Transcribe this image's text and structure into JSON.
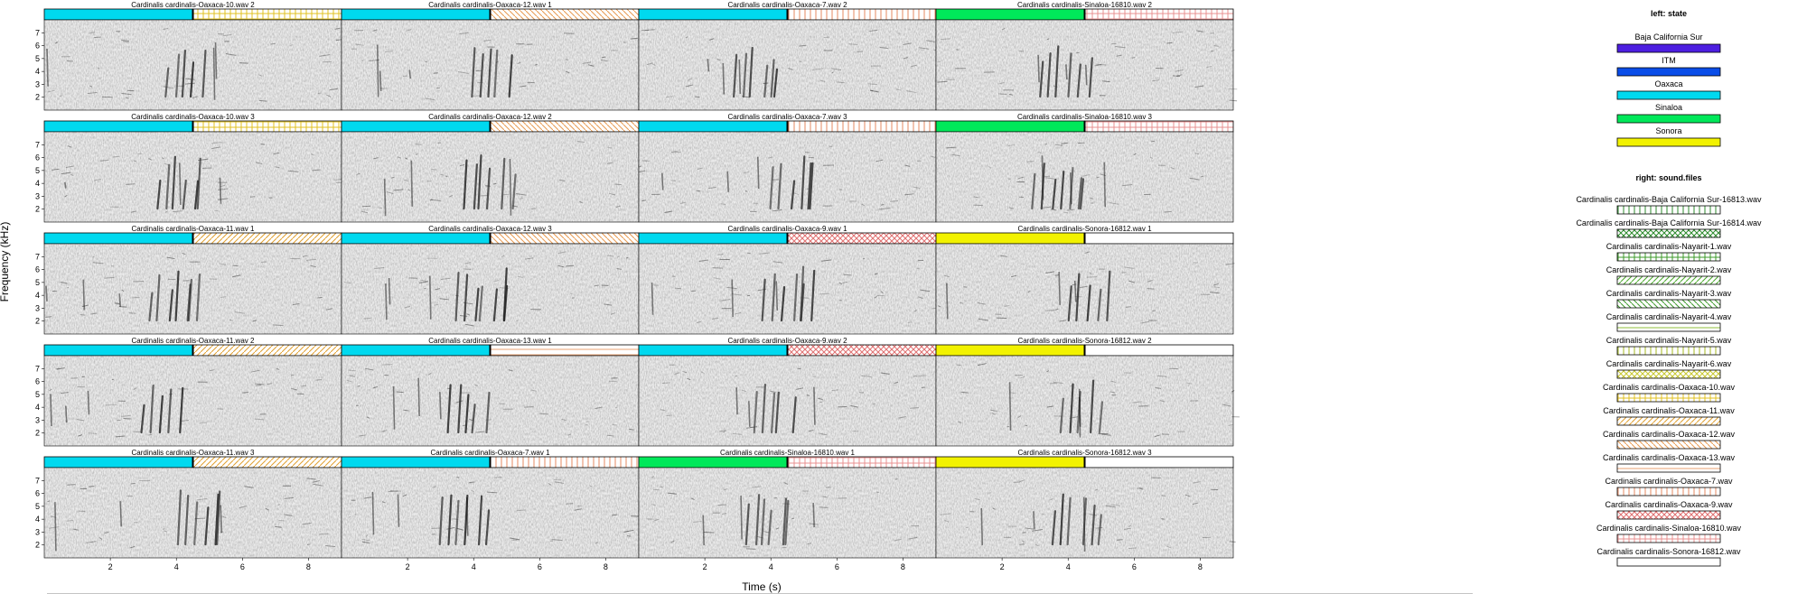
{
  "chart_data": {
    "type": "heatmap",
    "xlabel": "Time (s)",
    "ylabel": "Frequency (kHz)",
    "xlim": [
      0,
      9
    ],
    "ylim": [
      1,
      8
    ],
    "x_ticks": [
      2,
      4,
      6,
      8
    ],
    "y_ticks": [
      2,
      3,
      4,
      5,
      6,
      7
    ],
    "grid": false,
    "legend_placement": "right",
    "panels": [
      {
        "title": "Cardinalis cardinalis-Oaxaca-10.wav 2",
        "state": "Oaxaca",
        "sound_file": "Cardinalis cardinalis-Oaxaca-10.wav"
      },
      {
        "title": "Cardinalis cardinalis-Oaxaca-12.wav 1",
        "state": "Oaxaca",
        "sound_file": "Cardinalis cardinalis-Oaxaca-12.wav"
      },
      {
        "title": "Cardinalis cardinalis-Oaxaca-7.wav 2",
        "state": "Oaxaca",
        "sound_file": "Cardinalis cardinalis-Oaxaca-7.wav"
      },
      {
        "title": "Cardinalis cardinalis-Sinaloa-16810.wav 2",
        "state": "Sinaloa",
        "sound_file": "Cardinalis cardinalis-Sinaloa-16810.wav"
      },
      {
        "title": "Cardinalis cardinalis-Oaxaca-10.wav 3",
        "state": "Oaxaca",
        "sound_file": "Cardinalis cardinalis-Oaxaca-10.wav"
      },
      {
        "title": "Cardinalis cardinalis-Oaxaca-12.wav 2",
        "state": "Oaxaca",
        "sound_file": "Cardinalis cardinalis-Oaxaca-12.wav"
      },
      {
        "title": "Cardinalis cardinalis-Oaxaca-7.wav 3",
        "state": "Oaxaca",
        "sound_file": "Cardinalis cardinalis-Oaxaca-7.wav"
      },
      {
        "title": "Cardinalis cardinalis-Sinaloa-16810.wav 3",
        "state": "Sinaloa",
        "sound_file": "Cardinalis cardinalis-Sinaloa-16810.wav"
      },
      {
        "title": "Cardinalis cardinalis-Oaxaca-11.wav 1",
        "state": "Oaxaca",
        "sound_file": "Cardinalis cardinalis-Oaxaca-11.wav"
      },
      {
        "title": "Cardinalis cardinalis-Oaxaca-12.wav 3",
        "state": "Oaxaca",
        "sound_file": "Cardinalis cardinalis-Oaxaca-12.wav"
      },
      {
        "title": "Cardinalis cardinalis-Oaxaca-9.wav 1",
        "state": "Oaxaca",
        "sound_file": "Cardinalis cardinalis-Oaxaca-9.wav"
      },
      {
        "title": "Cardinalis cardinalis-Sonora-16812.wav 1",
        "state": "Sonora",
        "sound_file": "Cardinalis cardinalis-Sonora-16812.wav"
      },
      {
        "title": "Cardinalis cardinalis-Oaxaca-11.wav 2",
        "state": "Oaxaca",
        "sound_file": "Cardinalis cardinalis-Oaxaca-11.wav"
      },
      {
        "title": "Cardinalis cardinalis-Oaxaca-13.wav 1",
        "state": "Oaxaca",
        "sound_file": "Cardinalis cardinalis-Oaxaca-13.wav"
      },
      {
        "title": "Cardinalis cardinalis-Oaxaca-9.wav 2",
        "state": "Oaxaca",
        "sound_file": "Cardinalis cardinalis-Oaxaca-9.wav"
      },
      {
        "title": "Cardinalis cardinalis-Sonora-16812.wav 2",
        "state": "Sonora",
        "sound_file": "Cardinalis cardinalis-Sonora-16812.wav"
      },
      {
        "title": "Cardinalis cardinalis-Oaxaca-11.wav 3",
        "state": "Oaxaca",
        "sound_file": "Cardinalis cardinalis-Oaxaca-11.wav"
      },
      {
        "title": "Cardinalis cardinalis-Oaxaca-7.wav 1",
        "state": "Oaxaca",
        "sound_file": "Cardinalis cardinalis-Oaxaca-7.wav"
      },
      {
        "title": "Cardinalis cardinalis-Sinaloa-16810.wav 1",
        "state": "Sinaloa",
        "sound_file": "Cardinalis cardinalis-Sinaloa-16810.wav"
      },
      {
        "title": "Cardinalis cardinalis-Sonora-16812.wav 3",
        "state": "Sonora",
        "sound_file": "Cardinalis cardinalis-Sonora-16812.wav"
      }
    ],
    "legend_left": {
      "title": "left: state",
      "entries": [
        {
          "label": "Baja California Sur",
          "color": "#4d1fe0"
        },
        {
          "label": "ITM",
          "color": "#0a4de8"
        },
        {
          "label": "Oaxaca",
          "color": "#00d9ef"
        },
        {
          "label": "Sinaloa",
          "color": "#00e85a"
        },
        {
          "label": "Sonora",
          "color": "#f2f200"
        }
      ]
    },
    "legend_right": {
      "title": "right: sound.files",
      "entries": [
        {
          "label": "Cardinalis cardinalis-Baja California Sur-16813.wav",
          "color": "#2e8b2e",
          "pattern": "vlines"
        },
        {
          "label": "Cardinalis cardinalis-Baja California Sur-16814.wav",
          "color": "#2e8b2e",
          "pattern": "cross"
        },
        {
          "label": "Cardinalis cardinalis-Nayarit-1.wav",
          "color": "#3c9a2a",
          "pattern": "grid"
        },
        {
          "label": "Cardinalis cardinalis-Nayarit-2.wav",
          "color": "#4aa82a",
          "pattern": "diag"
        },
        {
          "label": "Cardinalis cardinalis-Nayarit-3.wav",
          "color": "#3c9a2a",
          "pattern": "diag2"
        },
        {
          "label": "Cardinalis cardinalis-Nayarit-4.wav",
          "color": "#8fbf3a",
          "pattern": "hlines"
        },
        {
          "label": "Cardinalis cardinalis-Nayarit-5.wav",
          "color": "#a6b820",
          "pattern": "vlines"
        },
        {
          "label": "Cardinalis cardinalis-Nayarit-6.wav",
          "color": "#c8c832",
          "pattern": "cross"
        },
        {
          "label": "Cardinalis cardinalis-Oaxaca-10.wav",
          "color": "#e0c020",
          "pattern": "grid"
        },
        {
          "label": "Cardinalis cardinalis-Oaxaca-11.wav",
          "color": "#e0a030",
          "pattern": "diag"
        },
        {
          "label": "Cardinalis cardinalis-Oaxaca-12.wav",
          "color": "#e89a50",
          "pattern": "diag2"
        },
        {
          "label": "Cardinalis cardinalis-Oaxaca-13.wav",
          "color": "#e8a070",
          "pattern": "hlines"
        },
        {
          "label": "Cardinalis cardinalis-Oaxaca-7.wav",
          "color": "#e58a60",
          "pattern": "vlines"
        },
        {
          "label": "Cardinalis cardinalis-Oaxaca-9.wav",
          "color": "#e07070",
          "pattern": "cross"
        },
        {
          "label": "Cardinalis cardinalis-Sinaloa-16810.wav",
          "color": "#e89090",
          "pattern": "grid"
        },
        {
          "label": "Cardinalis cardinalis-Sonora-16812.wav",
          "color": "#f0f0f0",
          "pattern": "none"
        }
      ]
    }
  }
}
